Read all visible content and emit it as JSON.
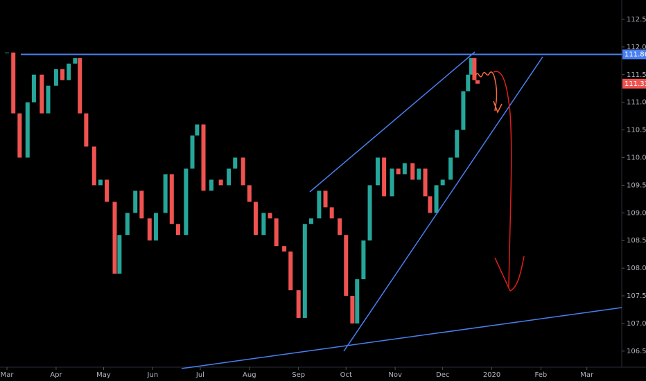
{
  "chart_data": {
    "type": "candlestick",
    "x": [
      0,
      4,
      8,
      13,
      17,
      22,
      26,
      31,
      35,
      39,
      43,
      46,
      50,
      55,
      59,
      63,
      68,
      71,
      76,
      81,
      85,
      90,
      94,
      100,
      104,
      108,
      113,
      117,
      120,
      124,
      129,
      135,
      140,
      144,
      149,
      153,
      157,
      162,
      166,
      170,
      175,
      179,
      184,
      188,
      192,
      197,
      201,
      205,
      210,
      214,
      218,
      221,
      225,
      229,
      234,
      238,
      243,
      247,
      251,
      256,
      260,
      264,
      267,
      271,
      275,
      280,
      284,
      288,
      291,
      293,
      295,
      297
    ],
    "values": [
      111.9,
      110.8,
      110.0,
      111.0,
      111.5,
      110.8,
      111.3,
      111.6,
      111.4,
      111.7,
      111.8,
      110.8,
      110.2,
      109.5,
      109.6,
      109.2,
      107.9,
      108.6,
      109.0,
      109.4,
      108.9,
      108.5,
      109.0,
      109.7,
      108.8,
      108.6,
      109.8,
      110.4,
      110.6,
      109.4,
      109.6,
      109.5,
      109.8,
      110.0,
      109.5,
      109.2,
      108.6,
      109.0,
      108.9,
      108.4,
      108.3,
      107.6,
      107.1,
      108.8,
      108.9,
      109.4,
      109.1,
      108.9,
      108.6,
      107.5,
      107.0,
      107.8,
      108.5,
      109.5,
      110.0,
      109.3,
      109.8,
      109.7,
      109.9,
      109.6,
      109.8,
      109.3,
      109.0,
      109.5,
      109.6,
      110.0,
      110.5,
      111.2,
      111.5,
      111.8,
      111.4,
      111.337
    ],
    "up_color": "#26a69a",
    "down_color": "#ef5350",
    "xlim": [
      -4.4,
      388
    ],
    "xticks": [
      {
        "value": 0,
        "label": "Mar"
      },
      {
        "value": 31,
        "label": "Apr"
      },
      {
        "value": 61,
        "label": "May"
      },
      {
        "value": 92,
        "label": "Jun"
      },
      {
        "value": 122,
        "label": "Jul"
      },
      {
        "value": 153,
        "label": "Aug"
      },
      {
        "value": 184,
        "label": "Sep"
      },
      {
        "value": 214,
        "label": "Oct"
      },
      {
        "value": 245,
        "label": "Nov"
      },
      {
        "value": 275,
        "label": "Dec"
      },
      {
        "value": 306,
        "label": "2020"
      },
      {
        "value": 337,
        "label": "Feb"
      },
      {
        "value": 366,
        "label": "Mar"
      }
    ],
    "ylim": [
      106.21,
      112.85
    ],
    "yticks": [
      {
        "value": 106.5,
        "label": "106.500"
      },
      {
        "value": 107,
        "label": "107.000"
      },
      {
        "value": 107.5,
        "label": "107.500"
      },
      {
        "value": 108,
        "label": "108.000"
      },
      {
        "value": 108.5,
        "label": "108.500"
      },
      {
        "value": 109,
        "label": "109.000"
      },
      {
        "value": 109.5,
        "label": "109.500"
      },
      {
        "value": 110,
        "label": "110.000"
      },
      {
        "value": 110.5,
        "label": "110.500"
      },
      {
        "value": 111,
        "label": "111.000"
      },
      {
        "value": 111.5,
        "label": "111.500"
      },
      {
        "value": 112,
        "label": "112.000"
      },
      {
        "value": 112.5,
        "label": "112.500"
      }
    ],
    "level": {
      "value": 111.867,
      "label": "111.867",
      "color": "#4a7ff0"
    },
    "last": {
      "value": 111.337,
      "label": "111.337",
      "color": "#ef5350"
    }
  }
}
